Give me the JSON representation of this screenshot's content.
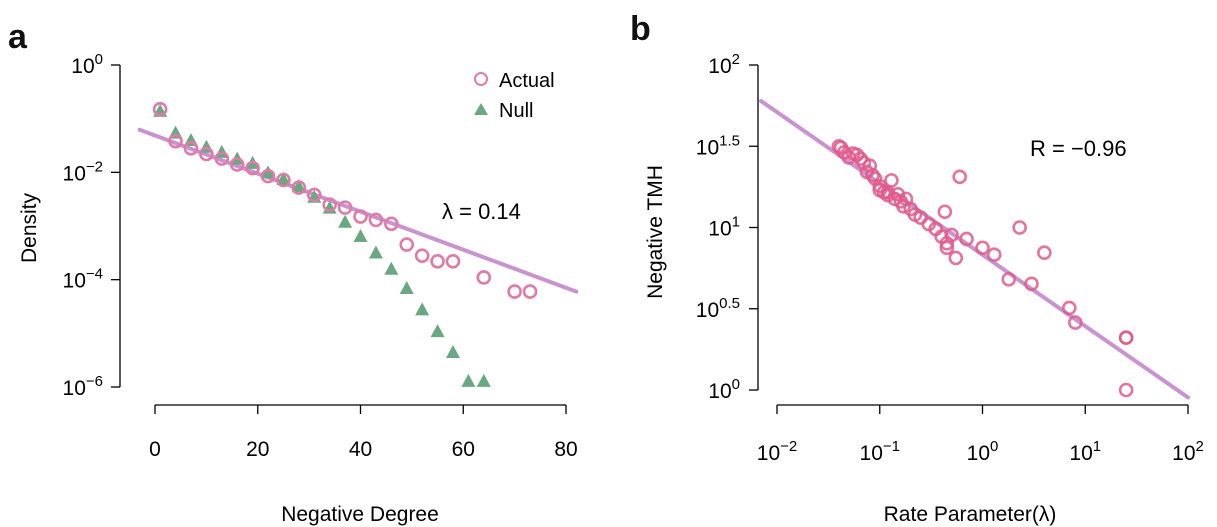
{
  "chart_data": [
    {
      "panel": "a",
      "type": "scatter",
      "xlabel": "Negative Degree",
      "ylabel": "Density",
      "y_scale": "log10",
      "xlim": [
        0,
        80
      ],
      "ylim": [
        -6,
        0
      ],
      "x_ticks": [
        {
          "value": 0,
          "label": "0"
        },
        {
          "value": 20,
          "label": "20"
        },
        {
          "value": 40,
          "label": "40"
        },
        {
          "value": 60,
          "label": "60"
        },
        {
          "value": 80,
          "label": "80"
        }
      ],
      "y_ticks": [
        {
          "value": 0,
          "base": "10",
          "exp": "0"
        },
        {
          "value": -2,
          "base": "10",
          "exp": "-2"
        },
        {
          "value": -4,
          "base": "10",
          "exp": "-4"
        },
        {
          "value": -6,
          "base": "10",
          "exp": "-6"
        }
      ],
      "annotation": "λ = 0.14",
      "legend_position": "top-right",
      "series": [
        {
          "name": "Actual",
          "marker": "open-circle",
          "color": "#e07aa6",
          "x": [
            1,
            4,
            7,
            10,
            13,
            16,
            19,
            22,
            25,
            28,
            31,
            34,
            37,
            40,
            43,
            46,
            49,
            52,
            55,
            58,
            64,
            70,
            73
          ],
          "y": [
            0.15,
            0.038,
            0.028,
            0.022,
            0.018,
            0.014,
            0.012,
            0.0085,
            0.0072,
            0.0052,
            0.0038,
            0.0025,
            0.0022,
            0.0015,
            0.0013,
            0.0011,
            0.00045,
            0.00028,
            0.00022,
            0.00022,
            0.00011,
            6e-05,
            6e-05
          ]
        },
        {
          "name": "Null",
          "marker": "filled-triangle",
          "color": "#6aa882",
          "x": [
            1,
            4,
            7,
            10,
            13,
            16,
            19,
            22,
            25,
            28,
            31,
            34,
            37,
            40,
            43,
            46,
            49,
            52,
            55,
            58,
            61,
            64
          ],
          "y": [
            0.14,
            0.055,
            0.04,
            0.03,
            0.024,
            0.018,
            0.015,
            0.01,
            0.0075,
            0.0055,
            0.0035,
            0.0022,
            0.0012,
            0.00065,
            0.00032,
            0.00016,
            7e-05,
            2.8e-05,
            1.1e-05,
            4.5e-06,
            1.3e-06,
            1.3e-06
          ]
        }
      ],
      "fit_line": {
        "color": "#c992d0",
        "x": [
          -3,
          82
        ],
        "y": [
          0.062,
          6e-05
        ]
      }
    },
    {
      "panel": "b",
      "type": "scatter",
      "xlabel": "Rate Parameter(λ)",
      "ylabel": "Negative TMH",
      "x_scale": "log10",
      "y_scale": "log10",
      "xlim": [
        -2,
        2
      ],
      "ylim": [
        0,
        2
      ],
      "x_ticks": [
        {
          "value": -2,
          "base": "10",
          "exp": "-2"
        },
        {
          "value": -1,
          "base": "10",
          "exp": "-1"
        },
        {
          "value": 0,
          "base": "10",
          "exp": "0"
        },
        {
          "value": 1,
          "base": "10",
          "exp": "1"
        },
        {
          "value": 2,
          "base": "10",
          "exp": "2"
        }
      ],
      "y_ticks": [
        {
          "value": 0,
          "base": "10",
          "exp": "0"
        },
        {
          "value": 0.5,
          "base": "10",
          "exp": "0.5"
        },
        {
          "value": 1,
          "base": "10",
          "exp": "1"
        },
        {
          "value": 1.5,
          "base": "10",
          "exp": "1.5"
        },
        {
          "value": 2,
          "base": "10",
          "exp": "2"
        }
      ],
      "annotation": "R = −0.96",
      "series": [
        {
          "name": "",
          "marker": "open-circle",
          "color": "#e05a8a",
          "x": [
            0.04,
            0.042,
            0.045,
            0.05,
            0.055,
            0.06,
            0.065,
            0.07,
            0.075,
            0.08,
            0.085,
            0.09,
            0.1,
            0.1,
            0.11,
            0.12,
            0.12,
            0.13,
            0.14,
            0.15,
            0.16,
            0.17,
            0.18,
            0.2,
            0.22,
            0.25,
            0.3,
            0.35,
            0.4,
            0.43,
            0.45,
            0.45,
            0.5,
            0.55,
            0.6,
            0.7,
            1.0,
            1.3,
            1.8,
            2.3,
            3.0,
            4.0,
            7.0,
            8.0,
            25,
            25,
            25
          ],
          "y": [
            31.6,
            31.0,
            29.0,
            27.0,
            28.5,
            28.0,
            26.5,
            25.0,
            22.0,
            24.0,
            21.0,
            20.0,
            18.0,
            17.0,
            16.5,
            15.8,
            16.5,
            19.5,
            15.0,
            16.0,
            14.5,
            13.5,
            15.0,
            13.0,
            12.0,
            11.5,
            10.5,
            9.8,
            8.8,
            12.5,
            8.0,
            7.5,
            9.0,
            6.5,
            20.5,
            8.5,
            7.5,
            6.8,
            4.8,
            10.0,
            4.5,
            7.0,
            3.2,
            2.6,
            2.1,
            2.1,
            1.0
          ]
        }
      ],
      "fit_line": {
        "color": "#c992d0",
        "x": [
          0.007,
          100
        ],
        "y": [
          60,
          0.9
        ]
      }
    }
  ],
  "panel_letters": {
    "a": "a",
    "b": "b"
  },
  "legend": {
    "actual": "Actual",
    "null": "Null"
  }
}
